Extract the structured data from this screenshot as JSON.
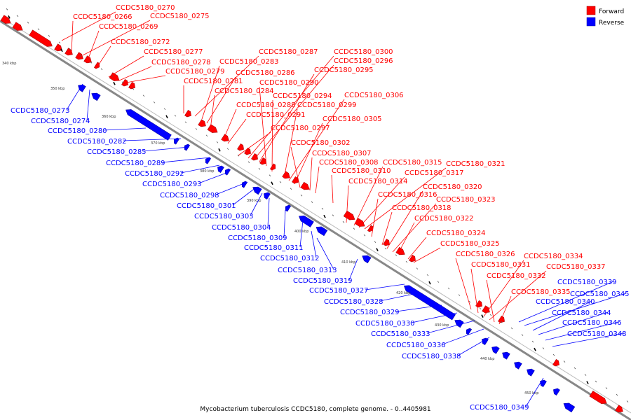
{
  "caption": "Mycobacterium tuberculosis CCDC5180, complete genome. - 0..4405981",
  "legend": [
    {
      "label": "Forward",
      "color": "#ff0000"
    },
    {
      "label": "Reverse",
      "color": "#0000ff"
    }
  ],
  "colors": {
    "forward": "#ff0000",
    "reverse": "#0000ff",
    "backbone": "#888888"
  },
  "ticks": [
    "340 kbp",
    "350 kbp",
    "360 kbp",
    "370 kbp",
    "380 kbp",
    "390 kbp",
    "400 kbp",
    "410 kbp",
    "420 kbp",
    "430 kbp",
    "440 kbp",
    "450 kbp"
  ],
  "forward_labels": [
    "CCDC5180_0270",
    "CCDC5180_0266",
    "CCDC5180_0275",
    "CCDC5180_0269",
    "CCDC5180_0272",
    "CCDC5180_0277",
    "CCDC5180_0278",
    "CCDC5180_0279",
    "CCDC5180_0281",
    "CCDC5180_0287",
    "CCDC5180_0283",
    "CCDC5180_0286",
    "CCDC5180_0284",
    "CCDC5180_0288",
    "CCDC5180_0291",
    "CCDC5180_0297",
    "CCDC5180_0300",
    "CCDC5180_0296",
    "CCDC5180_0295",
    "CCDC5180_0290",
    "CCDC5180_0294",
    "CCDC5180_0299",
    "CCDC5180_0306",
    "CCDC5180_0305",
    "CCDC5180_0302",
    "CCDC5180_0307",
    "CCDC5180_0308",
    "CCDC5180_0310",
    "CCDC5180_0314",
    "CCDC5180_0315",
    "CCDC5180_0317",
    "CCDC5180_0321",
    "CCDC5180_0316",
    "CCDC5180_0318",
    "CCDC5180_0320",
    "CCDC5180_0323",
    "CCDC5180_0322",
    "CCDC5180_0324",
    "CCDC5180_0325",
    "CCDC5180_0326",
    "CCDC5180_0331",
    "CCDC5180_0334",
    "CCDC5180_0337",
    "CCDC5180_0332",
    "CCDC5180_0335"
  ],
  "reverse_labels": [
    "CCDC5180_0273",
    "CCDC5180_0274",
    "CCDC5180_0280",
    "CCDC5180_0282",
    "CCDC5180_0285",
    "CCDC5180_0289",
    "CCDC5180_0292",
    "CCDC5180_0293",
    "CCDC5180_0298",
    "CCDC5180_0301",
    "CCDC5180_0303",
    "CCDC5180_0304",
    "CCDC5180_0309",
    "CCDC5180_0311",
    "CCDC5180_0312",
    "CCDC5180_0313",
    "CCDC5180_0319",
    "CCDC5180_0327",
    "CCDC5180_0328",
    "CCDC5180_0329",
    "CCDC5180_0330",
    "CCDC5180_0333",
    "CCDC5180_0336",
    "CCDC5180_0338",
    "CCDC5180_0339",
    "CCDC5180_0345",
    "CCDC5180_0340",
    "CCDC5180_0344",
    "CCDC5180_0346",
    "CCDC5180_0348",
    "CCDC5180_0349"
  ]
}
